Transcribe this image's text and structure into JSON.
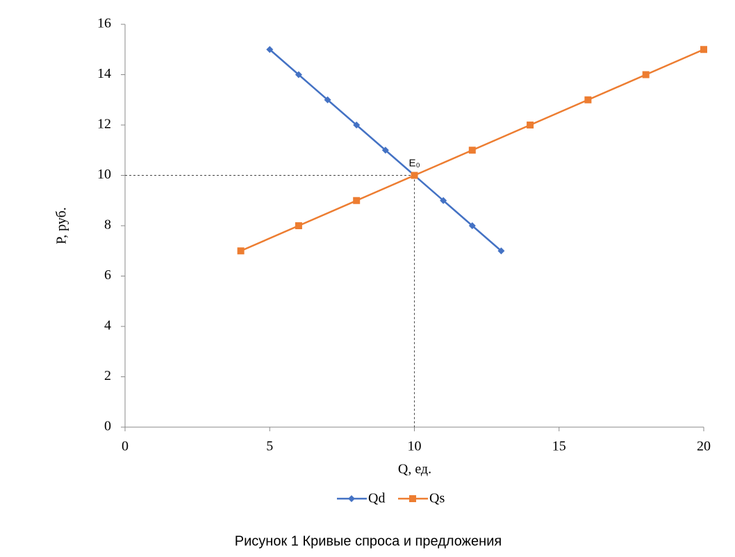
{
  "chart_data": {
    "type": "line",
    "x_label": "Q, ед.",
    "y_label": "P, руб.",
    "caption": "Рисунок 1 Кривые спроса и предложения",
    "xlim": [
      0,
      20
    ],
    "xticks": [
      0,
      5,
      10,
      15,
      20
    ],
    "ylim": [
      0,
      16
    ],
    "yticks": [
      0,
      2,
      4,
      6,
      8,
      10,
      12,
      14,
      16
    ],
    "grid": false,
    "legend": "bottom",
    "series": [
      {
        "name": "Qd",
        "color": "#4472c4",
        "marker": "diamond",
        "x": [
          5,
          6,
          7,
          8,
          9,
          10,
          11,
          12,
          13
        ],
        "values": [
          15,
          14,
          13,
          12,
          11,
          10,
          9,
          8,
          7
        ]
      },
      {
        "name": "Qs",
        "color": "#ed7d31",
        "marker": "square",
        "x": [
          4,
          6,
          8,
          10,
          12,
          14,
          16,
          18,
          20
        ],
        "values": [
          7,
          8,
          9,
          10,
          11,
          12,
          13,
          14,
          15
        ]
      }
    ],
    "annotation": {
      "text": "E₀",
      "x": 10,
      "y": 10
    }
  }
}
